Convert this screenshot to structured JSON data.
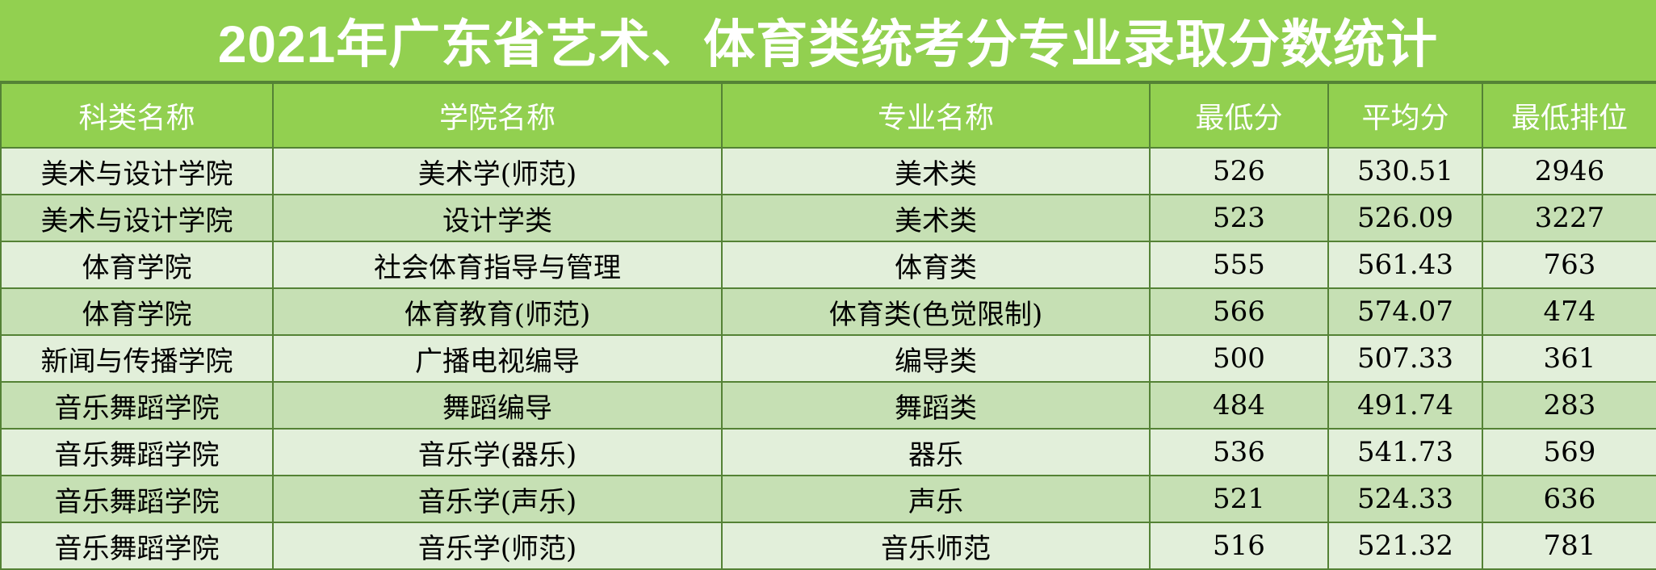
{
  "title": "2021年广东省艺术、体育类统考分专业录取分数统计",
  "colors": {
    "header_bg": "#92d050",
    "row_light": "#e2efda",
    "row_dark": "#c6e0b4",
    "border": "#548235"
  },
  "columns": [
    "科类名称",
    "学院名称",
    "专业名称",
    "最低分",
    "平均分",
    "最低排位"
  ],
  "rows": [
    [
      "美术与设计学院",
      "美术学(师范)",
      "美术类",
      "526",
      "530.51",
      "2946"
    ],
    [
      "美术与设计学院",
      "设计学类",
      "美术类",
      "523",
      "526.09",
      "3227"
    ],
    [
      "体育学院",
      "社会体育指导与管理",
      "体育类",
      "555",
      "561.43",
      "763"
    ],
    [
      "体育学院",
      "体育教育(师范)",
      "体育类(色觉限制)",
      "566",
      "574.07",
      "474"
    ],
    [
      "新闻与传播学院",
      "广播电视编导",
      "编导类",
      "500",
      "507.33",
      "361"
    ],
    [
      "音乐舞蹈学院",
      "舞蹈编导",
      "舞蹈类",
      "484",
      "491.74",
      "283"
    ],
    [
      "音乐舞蹈学院",
      "音乐学(器乐)",
      "器乐",
      "536",
      "541.73",
      "569"
    ],
    [
      "音乐舞蹈学院",
      "音乐学(声乐)",
      "声乐",
      "521",
      "524.33",
      "636"
    ],
    [
      "音乐舞蹈学院",
      "音乐学(师范)",
      "音乐师范",
      "516",
      "521.32",
      "781"
    ]
  ]
}
